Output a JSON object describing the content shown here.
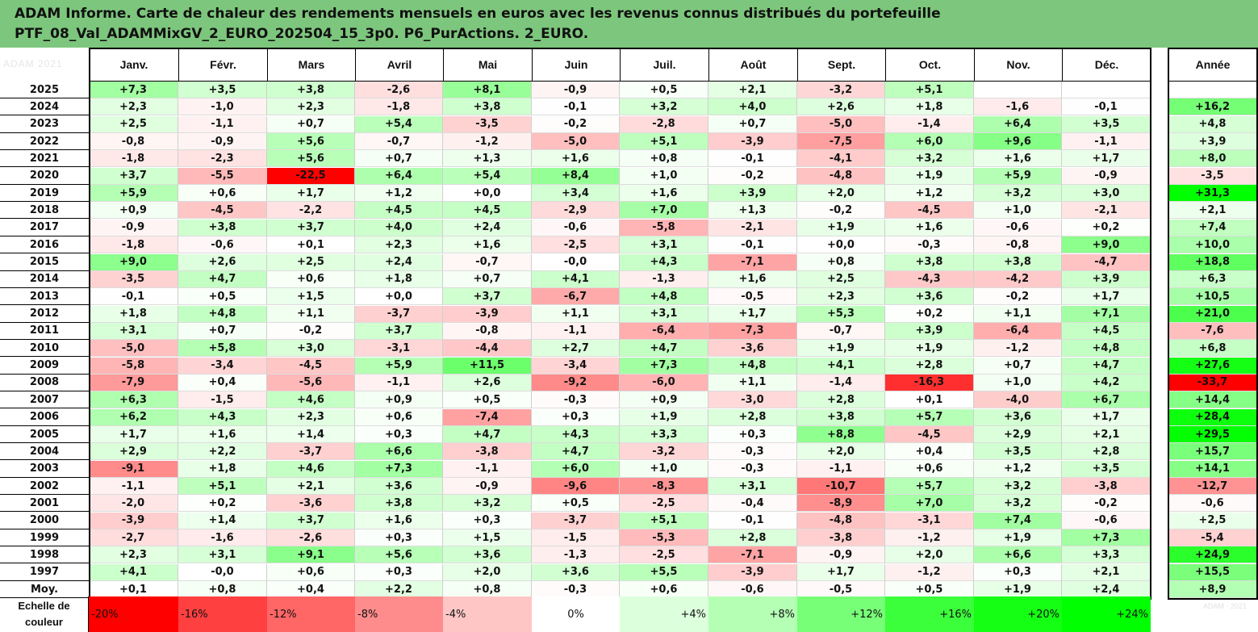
{
  "title": {
    "line1": "ADAM Informe. Carte de chaleur des rendements mensuels en euros avec les revenus connus distribués du portefeuille",
    "line2": "PTF_08_Val_ADAMMixGV_2_EURO_202504_15_3p0. P6_PurActions. 2_EURO."
  },
  "watermark": {
    "left": "ADAM 2021",
    "right": "ADAM · 2021"
  },
  "chart_data": {
    "type": "heatmap",
    "months": [
      "Janv.",
      "Févr.",
      "Mars",
      "Avril",
      "Mai",
      "Juin",
      "Juil.",
      "Août",
      "Sept.",
      "Oct.",
      "Nov.",
      "Déc."
    ],
    "annual_header": "Année",
    "rows": [
      {
        "year": "2025",
        "values": [
          "+7,3",
          "+3,5",
          "+3,8",
          "-2,6",
          "+8,1",
          "-0,9",
          "+0,5",
          "+2,1",
          "-3,2",
          "+5,1",
          "",
          ""
        ],
        "annual": ""
      },
      {
        "year": "2024",
        "values": [
          "+2,3",
          "-1,0",
          "+2,3",
          "-1,8",
          "+3,8",
          "-0,1",
          "+3,2",
          "+4,0",
          "+2,6",
          "+1,8",
          "-1,6",
          "-0,1"
        ],
        "annual": "+16,2"
      },
      {
        "year": "2023",
        "values": [
          "+2,5",
          "-1,1",
          "+0,7",
          "+5,4",
          "-3,5",
          "-0,2",
          "-2,8",
          "+0,7",
          "-5,0",
          "-1,4",
          "+6,4",
          "+3,5"
        ],
        "annual": "+4,8"
      },
      {
        "year": "2022",
        "values": [
          "-0,8",
          "-0,9",
          "+5,6",
          "-0,7",
          "-1,2",
          "-5,0",
          "+5,1",
          "-3,9",
          "-7,5",
          "+6,0",
          "+9,6",
          "-1,1"
        ],
        "annual": "+3,9"
      },
      {
        "year": "2021",
        "values": [
          "-1,8",
          "-2,3",
          "+5,6",
          "+0,7",
          "+1,3",
          "+1,6",
          "+0,8",
          "-0,1",
          "-4,1",
          "+3,2",
          "+1,6",
          "+1,7"
        ],
        "annual": "+8,0"
      },
      {
        "year": "2020",
        "values": [
          "+3,7",
          "-5,5",
          "-22,5",
          "+6,4",
          "+5,4",
          "+8,4",
          "+1,0",
          "-0,2",
          "-4,8",
          "+1,9",
          "+5,9",
          "-0,9"
        ],
        "annual": "-3,5"
      },
      {
        "year": "2019",
        "values": [
          "+5,9",
          "+0,6",
          "+1,7",
          "+1,2",
          "+0,0",
          "+3,4",
          "+1,6",
          "+3,9",
          "+2,0",
          "+1,2",
          "+3,2",
          "+3,0"
        ],
        "annual": "+31,3"
      },
      {
        "year": "2018",
        "values": [
          "+0,9",
          "-4,5",
          "-2,2",
          "+4,5",
          "+4,5",
          "-2,9",
          "+7,0",
          "+1,3",
          "-0,2",
          "-4,5",
          "+1,0",
          "-2,1"
        ],
        "annual": "+2,1"
      },
      {
        "year": "2017",
        "values": [
          "-0,9",
          "+3,8",
          "+3,7",
          "+4,0",
          "+2,4",
          "-0,6",
          "-5,8",
          "-2,1",
          "+1,9",
          "+1,6",
          "-0,6",
          "+0,2"
        ],
        "annual": "+7,4"
      },
      {
        "year": "2016",
        "values": [
          "-1,8",
          "-0,6",
          "+0,1",
          "+2,3",
          "+1,6",
          "-2,5",
          "+3,1",
          "-0,1",
          "+0,0",
          "-0,3",
          "-0,8",
          "+9,0"
        ],
        "annual": "+10,0"
      },
      {
        "year": "2015",
        "values": [
          "+9,0",
          "+2,6",
          "+2,5",
          "+2,4",
          "-0,7",
          "-0,0",
          "+4,3",
          "-7,1",
          "+0,8",
          "+3,8",
          "+3,8",
          "-4,7"
        ],
        "annual": "+18,8"
      },
      {
        "year": "2014",
        "values": [
          "-3,5",
          "+4,7",
          "+0,6",
          "+1,8",
          "+0,7",
          "+4,1",
          "-1,3",
          "+1,6",
          "+2,5",
          "-4,3",
          "-4,2",
          "+3,9"
        ],
        "annual": "+6,3"
      },
      {
        "year": "2013",
        "values": [
          "-0,1",
          "+0,5",
          "+1,5",
          "+0,0",
          "+3,7",
          "-6,7",
          "+4,8",
          "-0,5",
          "+2,3",
          "+3,6",
          "-0,2",
          "+1,7"
        ],
        "annual": "+10,5"
      },
      {
        "year": "2012",
        "values": [
          "+1,8",
          "+4,8",
          "+1,1",
          "-3,7",
          "-3,9",
          "+1,1",
          "+3,1",
          "+1,7",
          "+5,3",
          "+0,2",
          "+1,1",
          "+7,1"
        ],
        "annual": "+21,0"
      },
      {
        "year": "2011",
        "values": [
          "+3,1",
          "+0,7",
          "-0,2",
          "+3,7",
          "-0,8",
          "-1,1",
          "-6,4",
          "-7,3",
          "-0,7",
          "+3,9",
          "-6,4",
          "+4,5"
        ],
        "annual": "-7,6"
      },
      {
        "year": "2010",
        "values": [
          "-5,0",
          "+5,8",
          "+3,0",
          "-3,1",
          "-4,4",
          "+2,7",
          "+4,7",
          "-3,6",
          "+1,9",
          "+1,9",
          "-1,2",
          "+4,8"
        ],
        "annual": "+6,8"
      },
      {
        "year": "2009",
        "values": [
          "-5,8",
          "-3,4",
          "-4,5",
          "+5,9",
          "+11,5",
          "-3,4",
          "+7,3",
          "+4,8",
          "+4,1",
          "+2,8",
          "+0,7",
          "+4,7"
        ],
        "annual": "+27,6"
      },
      {
        "year": "2008",
        "values": [
          "-7,9",
          "+0,4",
          "-5,6",
          "-1,1",
          "+2,6",
          "-9,2",
          "-6,0",
          "+1,1",
          "-1,4",
          "-16,3",
          "+1,0",
          "+4,2"
        ],
        "annual": "-33,7"
      },
      {
        "year": "2007",
        "values": [
          "+6,3",
          "-1,5",
          "+4,6",
          "+0,9",
          "+0,5",
          "-0,3",
          "+0,9",
          "-3,0",
          "+2,8",
          "+0,1",
          "-4,0",
          "+6,7"
        ],
        "annual": "+14,4"
      },
      {
        "year": "2006",
        "values": [
          "+6,2",
          "+4,3",
          "+2,3",
          "+0,6",
          "-7,4",
          "+0,3",
          "+1,9",
          "+2,8",
          "+3,8",
          "+5,7",
          "+3,6",
          "+1,7"
        ],
        "annual": "+28,4"
      },
      {
        "year": "2005",
        "values": [
          "+1,7",
          "+1,6",
          "+1,4",
          "+0,3",
          "+4,7",
          "+4,3",
          "+3,3",
          "+0,3",
          "+8,8",
          "-4,5",
          "+2,9",
          "+2,1"
        ],
        "annual": "+29,5"
      },
      {
        "year": "2004",
        "values": [
          "+2,9",
          "+2,2",
          "-3,7",
          "+6,6",
          "-3,8",
          "+4,7",
          "-3,2",
          "-0,3",
          "+2,0",
          "+0,4",
          "+3,5",
          "+2,8"
        ],
        "annual": "+15,7"
      },
      {
        "year": "2003",
        "values": [
          "-9,1",
          "+1,8",
          "+4,6",
          "+7,3",
          "-1,1",
          "+6,0",
          "+1,0",
          "-0,3",
          "-1,1",
          "+0,6",
          "+1,2",
          "+3,5"
        ],
        "annual": "+14,1"
      },
      {
        "year": "2002",
        "values": [
          "-1,1",
          "+5,1",
          "+2,1",
          "+3,6",
          "-0,9",
          "-9,6",
          "-8,3",
          "+3,1",
          "-10,7",
          "+5,7",
          "+3,2",
          "-3,8"
        ],
        "annual": "-12,7"
      },
      {
        "year": "2001",
        "values": [
          "-2,0",
          "+0,2",
          "-3,6",
          "+3,8",
          "+3,2",
          "+0,5",
          "-2,5",
          "-0,4",
          "-8,9",
          "+7,0",
          "+3,2",
          "-0,2"
        ],
        "annual": "-0,6"
      },
      {
        "year": "2000",
        "values": [
          "-3,9",
          "+1,4",
          "+3,7",
          "+1,6",
          "+0,3",
          "-3,7",
          "+5,1",
          "-0,1",
          "-4,8",
          "-3,1",
          "+7,4",
          "-0,6"
        ],
        "annual": "+2,5"
      },
      {
        "year": "1999",
        "values": [
          "-2,7",
          "-1,6",
          "-2,6",
          "+0,3",
          "+1,5",
          "-1,5",
          "-5,3",
          "+2,8",
          "-3,8",
          "-1,2",
          "+1,9",
          "+7,3"
        ],
        "annual": "-5,4"
      },
      {
        "year": "1998",
        "values": [
          "+2,3",
          "+3,1",
          "+9,1",
          "+5,6",
          "+3,6",
          "-1,3",
          "-2,5",
          "-7,1",
          "-0,9",
          "+2,0",
          "+6,6",
          "+3,3"
        ],
        "annual": "+24,9"
      },
      {
        "year": "1997",
        "values": [
          "+4,1",
          "-0,0",
          "+0,6",
          "+0,3",
          "+2,0",
          "+3,6",
          "+5,5",
          "-3,9",
          "+1,7",
          "-1,2",
          "+0,3",
          "+2,1"
        ],
        "annual": "+15,5"
      },
      {
        "year": "Moy.",
        "values": [
          "+0,1",
          "+0,8",
          "+0,4",
          "+2,2",
          "+0,8",
          "-0,3",
          "+0,6",
          "-0,6",
          "-0,5",
          "+0,5",
          "+1,9",
          "+2,4"
        ],
        "annual": "+8,9"
      }
    ],
    "color_scale": {
      "label_line1": "Echelle de",
      "label_line2": "couleur",
      "stops": [
        "-20%",
        "-16%",
        "-12%",
        "-8%",
        "-4%",
        "0%",
        "+4%",
        "+8%",
        "+12%",
        "+16%",
        "+20%",
        "+24%"
      ],
      "colors": [
        "#ff0000",
        "#ff4040",
        "#ff6666",
        "#ff8c8c",
        "#ffc6c6",
        "#ffffff",
        "#dcffdc",
        "#b4ffb4",
        "#78ff78",
        "#3cff3c",
        "#14ff14",
        "#00ff00"
      ]
    }
  }
}
